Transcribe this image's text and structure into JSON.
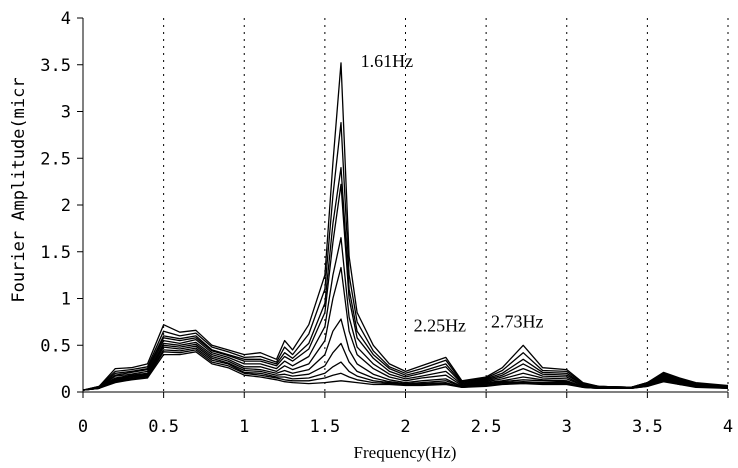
{
  "chart_data": {
    "type": "line",
    "xlabel": "Frequency(Hz)",
    "ylabel": "Fourier Amplitude(micr",
    "xlim": [
      0,
      4
    ],
    "ylim": [
      0,
      4
    ],
    "xticks": [
      0,
      0.5,
      1,
      1.5,
      2,
      2.5,
      3,
      3.5,
      4
    ],
    "xtick_labels": [
      "0",
      "0.5",
      "1",
      "1.5",
      "2",
      "2.5",
      "3",
      "3.5",
      "4"
    ],
    "yticks": [
      0,
      0.5,
      1,
      1.5,
      2,
      2.5,
      3,
      3.5,
      4
    ],
    "ytick_labels": [
      "0",
      "0.5",
      "1",
      "1.5",
      "2",
      "2.5",
      "3",
      "3.5",
      "4"
    ],
    "grid": "vertical-dotted",
    "line_color": "#000000",
    "x": [
      0,
      0.1,
      0.2,
      0.3,
      0.4,
      0.5,
      0.6,
      0.7,
      0.8,
      0.9,
      1.0,
      1.1,
      1.2,
      1.25,
      1.3,
      1.4,
      1.5,
      1.55,
      1.6,
      1.65,
      1.7,
      1.8,
      1.9,
      2.0,
      2.1,
      2.25,
      2.35,
      2.5,
      2.6,
      2.73,
      2.85,
      3.0,
      3.1,
      3.2,
      3.4,
      3.5,
      3.6,
      3.7,
      3.8,
      4.0
    ],
    "series": [
      {
        "values": [
          0.02,
          0.06,
          0.25,
          0.26,
          0.3,
          0.72,
          0.64,
          0.66,
          0.5,
          0.45,
          0.4,
          0.42,
          0.35,
          0.55,
          0.45,
          0.72,
          1.25,
          2.45,
          3.52,
          1.45,
          0.85,
          0.5,
          0.3,
          0.22,
          0.28,
          0.37,
          0.12,
          0.16,
          0.26,
          0.5,
          0.26,
          0.24,
          0.1,
          0.06,
          0.05,
          0.1,
          0.21,
          0.15,
          0.1,
          0.07
        ]
      },
      {
        "values": [
          0.02,
          0.06,
          0.22,
          0.24,
          0.27,
          0.65,
          0.6,
          0.63,
          0.48,
          0.43,
          0.37,
          0.38,
          0.32,
          0.48,
          0.4,
          0.62,
          1.1,
          2.1,
          2.88,
          1.25,
          0.75,
          0.44,
          0.27,
          0.2,
          0.25,
          0.34,
          0.11,
          0.15,
          0.23,
          0.42,
          0.23,
          0.22,
          0.09,
          0.06,
          0.05,
          0.1,
          0.2,
          0.14,
          0.09,
          0.06
        ]
      },
      {
        "values": [
          0.02,
          0.05,
          0.2,
          0.22,
          0.25,
          0.6,
          0.57,
          0.6,
          0.45,
          0.4,
          0.35,
          0.35,
          0.3,
          0.42,
          0.36,
          0.52,
          0.95,
          1.8,
          2.4,
          1.1,
          0.65,
          0.4,
          0.25,
          0.18,
          0.22,
          0.3,
          0.1,
          0.14,
          0.2,
          0.35,
          0.21,
          0.2,
          0.08,
          0.06,
          0.05,
          0.1,
          0.19,
          0.13,
          0.09,
          0.06
        ]
      },
      {
        "values": [
          0.02,
          0.05,
          0.18,
          0.21,
          0.24,
          0.58,
          0.55,
          0.58,
          0.44,
          0.39,
          0.33,
          0.33,
          0.28,
          0.38,
          0.33,
          0.46,
          0.85,
          1.6,
          2.22,
          1.0,
          0.58,
          0.36,
          0.22,
          0.16,
          0.2,
          0.27,
          0.09,
          0.13,
          0.18,
          0.3,
          0.19,
          0.18,
          0.08,
          0.06,
          0.05,
          0.09,
          0.18,
          0.12,
          0.08,
          0.06
        ]
      },
      {
        "values": [
          0.02,
          0.05,
          0.17,
          0.19,
          0.22,
          0.55,
          0.52,
          0.56,
          0.42,
          0.37,
          0.3,
          0.3,
          0.25,
          0.33,
          0.28,
          0.38,
          0.7,
          1.25,
          1.65,
          0.8,
          0.48,
          0.3,
          0.19,
          0.14,
          0.17,
          0.22,
          0.08,
          0.12,
          0.16,
          0.25,
          0.17,
          0.16,
          0.07,
          0.05,
          0.05,
          0.09,
          0.17,
          0.12,
          0.08,
          0.06
        ]
      },
      {
        "values": [
          0.02,
          0.05,
          0.15,
          0.18,
          0.2,
          0.52,
          0.5,
          0.53,
          0.4,
          0.35,
          0.27,
          0.27,
          0.22,
          0.28,
          0.24,
          0.3,
          0.55,
          1.0,
          1.33,
          0.65,
          0.4,
          0.25,
          0.16,
          0.12,
          0.15,
          0.18,
          0.07,
          0.11,
          0.14,
          0.2,
          0.15,
          0.14,
          0.07,
          0.05,
          0.05,
          0.08,
          0.16,
          0.11,
          0.08,
          0.05
        ]
      },
      {
        "values": [
          0.02,
          0.04,
          0.14,
          0.17,
          0.19,
          0.5,
          0.48,
          0.51,
          0.38,
          0.33,
          0.25,
          0.24,
          0.2,
          0.23,
          0.2,
          0.24,
          0.4,
          0.65,
          0.78,
          0.45,
          0.3,
          0.19,
          0.13,
          0.1,
          0.12,
          0.14,
          0.06,
          0.1,
          0.12,
          0.16,
          0.13,
          0.12,
          0.06,
          0.05,
          0.04,
          0.08,
          0.15,
          0.1,
          0.07,
          0.05
        ]
      },
      {
        "values": [
          0.02,
          0.04,
          0.13,
          0.16,
          0.18,
          0.48,
          0.46,
          0.49,
          0.36,
          0.31,
          0.23,
          0.22,
          0.18,
          0.19,
          0.17,
          0.19,
          0.28,
          0.42,
          0.52,
          0.32,
          0.22,
          0.15,
          0.11,
          0.09,
          0.1,
          0.12,
          0.06,
          0.09,
          0.11,
          0.13,
          0.12,
          0.11,
          0.06,
          0.05,
          0.04,
          0.07,
          0.14,
          0.1,
          0.07,
          0.05
        ]
      },
      {
        "values": [
          0.02,
          0.04,
          0.12,
          0.15,
          0.17,
          0.45,
          0.44,
          0.47,
          0.34,
          0.3,
          0.21,
          0.2,
          0.16,
          0.16,
          0.14,
          0.15,
          0.2,
          0.27,
          0.32,
          0.22,
          0.17,
          0.12,
          0.1,
          0.08,
          0.09,
          0.1,
          0.05,
          0.08,
          0.1,
          0.11,
          0.1,
          0.1,
          0.05,
          0.04,
          0.04,
          0.07,
          0.13,
          0.09,
          0.06,
          0.04
        ]
      },
      {
        "values": [
          0.02,
          0.04,
          0.11,
          0.14,
          0.16,
          0.43,
          0.42,
          0.45,
          0.32,
          0.28,
          0.2,
          0.18,
          0.15,
          0.13,
          0.12,
          0.12,
          0.15,
          0.18,
          0.2,
          0.16,
          0.13,
          0.1,
          0.09,
          0.08,
          0.08,
          0.09,
          0.05,
          0.07,
          0.09,
          0.1,
          0.09,
          0.09,
          0.05,
          0.04,
          0.04,
          0.06,
          0.12,
          0.08,
          0.06,
          0.04
        ]
      },
      {
        "values": [
          0.02,
          0.04,
          0.1,
          0.13,
          0.15,
          0.4,
          0.4,
          0.43,
          0.3,
          0.26,
          0.18,
          0.16,
          0.13,
          0.11,
          0.1,
          0.09,
          0.1,
          0.11,
          0.12,
          0.11,
          0.1,
          0.08,
          0.08,
          0.07,
          0.07,
          0.08,
          0.05,
          0.06,
          0.08,
          0.09,
          0.08,
          0.08,
          0.05,
          0.04,
          0.04,
          0.06,
          0.11,
          0.08,
          0.05,
          0.04
        ]
      }
    ],
    "annotations": [
      {
        "text": "1.61Hz",
        "x": 1.61,
        "y": 3.52
      },
      {
        "text": "2.25Hz",
        "x": 2.25,
        "y": 0.37
      },
      {
        "text": "2.73Hz",
        "x": 2.73,
        "y": 0.5
      }
    ]
  }
}
